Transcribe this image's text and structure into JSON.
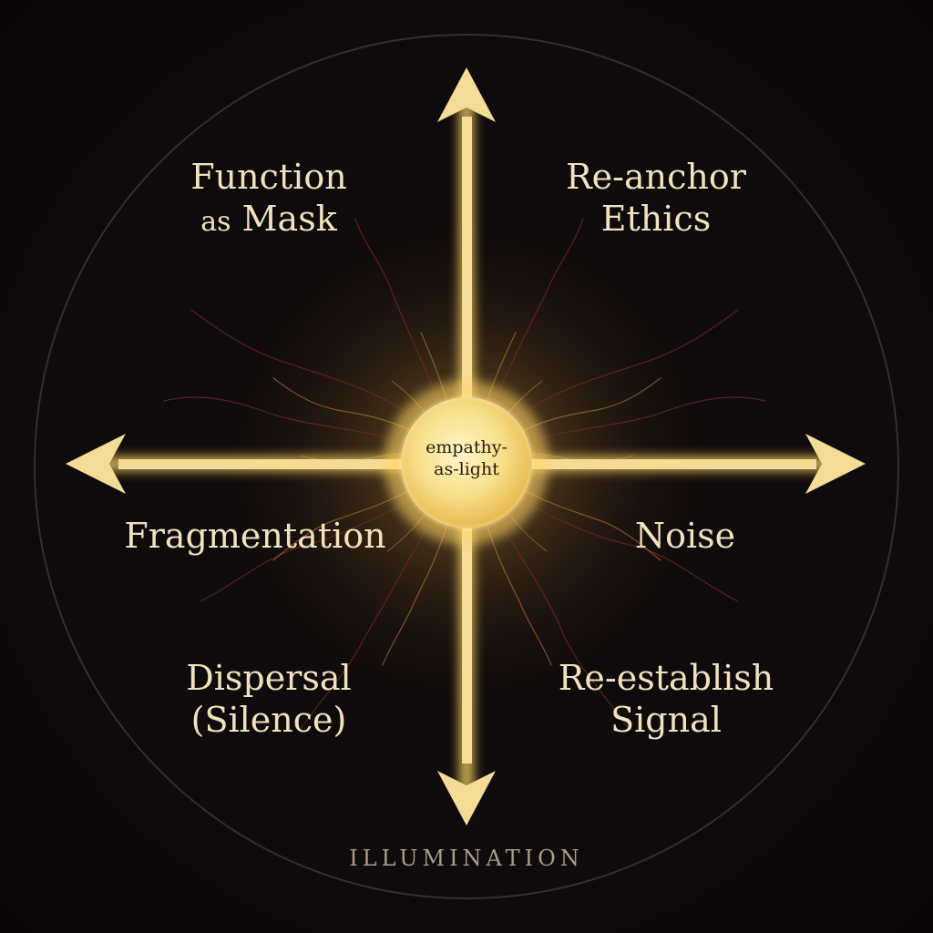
{
  "center": {
    "line1": "empathy-",
    "line2": "as-light"
  },
  "quadrants": {
    "top_left": {
      "line1": "Function",
      "line2_small": "as",
      "line2": "Mask"
    },
    "top_right": {
      "line1": "Re-anchor",
      "line2": "Ethics"
    },
    "left": {
      "text": "Fragmentation"
    },
    "right": {
      "text": "Noise"
    },
    "bottom_left": {
      "line1": "Dispersal",
      "line2": "(Silence)"
    },
    "bottom_right": {
      "line1": "Re-establish",
      "line2": "Signal"
    }
  },
  "caption": "ILLUMINATION",
  "colors": {
    "background": "#0e0a0b",
    "ring": "#3a2c2a",
    "arrow": "#f4dc96",
    "glow": "#ffd766",
    "text": "#f1e2bd",
    "veins": "#7a2b22"
  }
}
